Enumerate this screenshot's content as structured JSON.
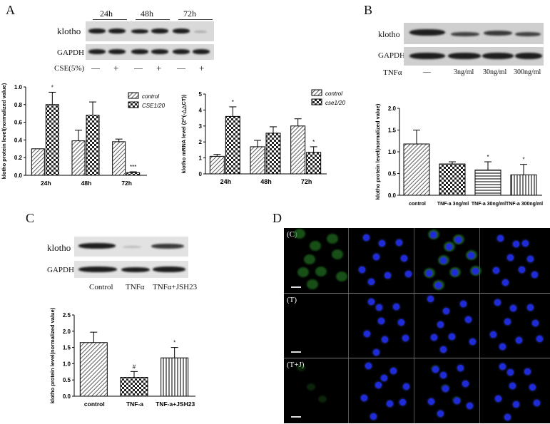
{
  "panels": {
    "A": {
      "letter": "A",
      "time_labels": [
        "24h",
        "48h",
        "72h"
      ],
      "blot_rows": [
        "klotho",
        "GAPDH"
      ],
      "treatment_label": "CSE(5%)",
      "treatment_signs": [
        "—",
        "+",
        "—",
        "+",
        "—",
        "+"
      ]
    },
    "B": {
      "letter": "B",
      "blot_rows": [
        "klotho",
        "GAPDH"
      ],
      "treatment_label": "TNFα",
      "lanes": [
        "—",
        "3ng/ml",
        "30ng/ml",
        "300ng/ml"
      ]
    },
    "C": {
      "letter": "C",
      "blot_rows": [
        "klotho",
        "GAPDH"
      ],
      "lanes": [
        "Control",
        "TNFα",
        "TNFα+JSH23"
      ]
    },
    "D": {
      "letter": "D",
      "row_labels": [
        "(C)",
        "(T)",
        "(T+J)"
      ]
    }
  },
  "chart_data": [
    {
      "id": "A-protein",
      "type": "bar",
      "categories": [
        "24h",
        "48h",
        "72h"
      ],
      "series": [
        {
          "name": "control",
          "values": [
            0.3,
            0.39,
            0.38
          ],
          "errors": [
            0.0,
            0.12,
            0.03
          ],
          "pattern": "hatch"
        },
        {
          "name": "CSE1/20",
          "values": [
            0.8,
            0.68,
            0.03
          ],
          "errors": [
            0.14,
            0.15,
            0.01
          ],
          "pattern": "check"
        }
      ],
      "annotations": [
        "*",
        "",
        "***"
      ],
      "annotation_series": 1,
      "ylabel": "klotho protein level(normalized value)",
      "ylim": [
        0,
        1.0
      ],
      "yticks": [
        "0.0",
        "0.2",
        "0.4",
        "0.6",
        "0.8",
        "1.0"
      ],
      "legend": "top-right"
    },
    {
      "id": "A-mrna",
      "type": "bar",
      "categories": [
        "24h",
        "48h",
        "72h"
      ],
      "series": [
        {
          "name": "control",
          "values": [
            1.1,
            1.7,
            3.0
          ],
          "errors": [
            0.12,
            0.4,
            0.45
          ],
          "pattern": "hatch"
        },
        {
          "name": "cse1/20",
          "values": [
            3.6,
            2.55,
            1.35
          ],
          "errors": [
            0.6,
            0.4,
            0.35
          ],
          "pattern": "check"
        }
      ],
      "annotations": [
        "*",
        "",
        "*"
      ],
      "annotation_series": 1,
      "ylabel": "klotho mRNA level (2^(-△△CT))",
      "ylim": [
        0,
        5
      ],
      "yticks": [
        "0",
        "1",
        "2",
        "3",
        "4",
        "5"
      ],
      "legend": "top-right"
    },
    {
      "id": "B-protein",
      "type": "bar",
      "categories": [
        "control",
        "TNF-a 3ng/ml",
        "TNF-a 30ng/ml",
        "TNF-a 300ng/ml"
      ],
      "values": [
        1.18,
        0.72,
        0.58,
        0.47
      ],
      "errors": [
        0.32,
        0.05,
        0.19,
        0.24
      ],
      "patterns": [
        "hatch",
        "check",
        "hstripe",
        "vstripe"
      ],
      "annotations": [
        "",
        "",
        "*",
        "*"
      ],
      "ylabel": "klotho protein level(normalized value)",
      "ylim": [
        0,
        2.0
      ],
      "yticks": [
        "0.0",
        "0.5",
        "1.0",
        "1.5",
        "2.0"
      ]
    },
    {
      "id": "C-protein",
      "type": "bar",
      "categories": [
        "control",
        "TNF-a",
        "TNF-a+JSH23"
      ],
      "values": [
        1.65,
        0.58,
        1.18
      ],
      "errors": [
        0.32,
        0.18,
        0.32
      ],
      "patterns": [
        "hatch",
        "check",
        "vstripe"
      ],
      "annotations": [
        "",
        "#",
        "*"
      ],
      "ylabel": "klotho protein level(normalized value)",
      "ylim": [
        0,
        2.5
      ],
      "yticks": [
        "0.0",
        "0.5",
        "1.0",
        "1.5",
        "2.0",
        "2.5"
      ]
    }
  ]
}
